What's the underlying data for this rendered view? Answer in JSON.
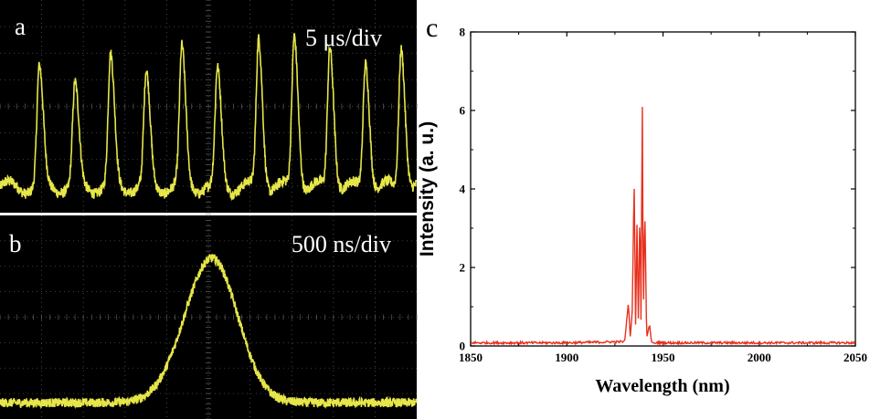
{
  "colors": {
    "scope_background": "#000000",
    "scope_trace": "#e6e64a",
    "scope_grid": "#555555",
    "spectrum_line": "#e8301e",
    "axis": "#000000"
  },
  "chart_data": [
    {
      "panel": "a",
      "type": "line",
      "timebase": "5 μs/div",
      "grid": true,
      "x_divisions": 10,
      "y_divisions": 8,
      "pulse_count": 11,
      "pulse_peak_levels": [
        0.67,
        0.59,
        0.72,
        0.64,
        0.76,
        0.66,
        0.82,
        0.84,
        0.79,
        0.72,
        0.79
      ],
      "baseline_level": 0.12
    },
    {
      "panel": "b",
      "type": "line",
      "timebase": "500 ns/div",
      "grid": true,
      "x_divisions": 10,
      "y_divisions": 8,
      "single_pulse_peak_level": 0.79,
      "baseline_level": 0.08
    },
    {
      "panel": "c",
      "type": "line",
      "xlabel": "Wavelength (nm)",
      "ylabel": "Intensity (a. u.)",
      "xlim": [
        1850,
        2050
      ],
      "ylim": [
        0,
        8
      ],
      "xticks": [
        1850,
        1900,
        1950,
        2000,
        2050
      ],
      "yticks": [
        0,
        2,
        4,
        6,
        8
      ],
      "grid": false,
      "series": [
        {
          "x": [
            1850,
            1900,
            1930,
            1932,
            1933,
            1934,
            1935,
            1935.8,
            1936.5,
            1937.2,
            1938,
            1938.6,
            1939.2,
            1939.8,
            1940.5,
            1941.5,
            1943,
            1944,
            1946,
            1950,
            2000,
            2050
          ],
          "y": [
            0.05,
            0.05,
            0.08,
            1.1,
            0.2,
            0.9,
            4.25,
            0.3,
            3.3,
            0.5,
            3.6,
            0.4,
            6.6,
            0.5,
            3.7,
            0.2,
            0.55,
            0.1,
            0.06,
            0.05,
            0.05,
            0.05
          ]
        }
      ]
    }
  ]
}
